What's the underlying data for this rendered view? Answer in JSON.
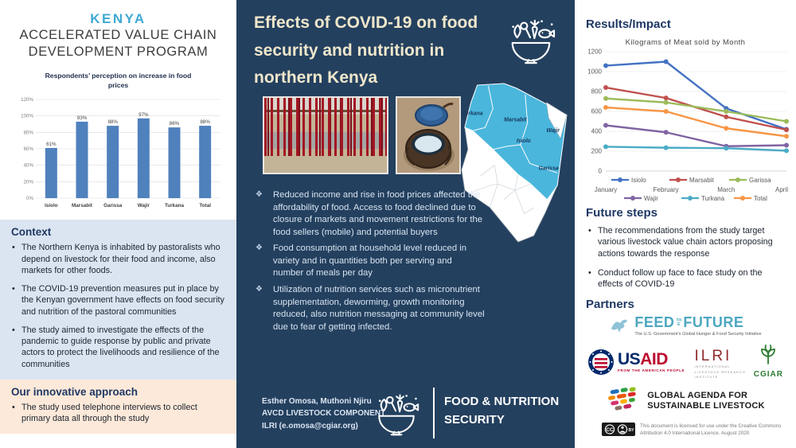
{
  "left_column": {
    "program_title": {
      "line1": "KENYA",
      "line2": "ACCELERATED VALUE CHAIN",
      "line3": "DEVELOPMENT PROGRAM"
    },
    "context": {
      "heading": "Context",
      "bullets": [
        "The Northern Kenya is inhabited by pastoralists who depend on livestock for their food and income, also markets for other foods.",
        "The COVID-19 prevention measures put in place by the Kenyan government have effects on food security and nutrition of the pastoral communities",
        "The study aimed to investigate the effects of the pandemic to guide response by public and private actors to protect the livelihoods and resilience of the communities"
      ]
    },
    "approach": {
      "heading": "Our innovative approach",
      "bullets": [
        "The study used telephone interviews to collect primary data all through the study"
      ]
    }
  },
  "center_column": {
    "title": "Effects of COVID-19 on food security and nutrition in northern Kenya",
    "map_counties": [
      "Turkana",
      "Marsabit",
      "Wajir",
      "Isiolo",
      "Garissa"
    ],
    "bullets": [
      "Reduced income and rise in food prices affected the affordability of food. Access to food declined due to closure of markets and movement restrictions for the food sellers (mobile) and potential buyers",
      "Food consumption at household level reduced in variety and in quantities both per serving and number of meals per day",
      "Utilization of nutrition services such as micronutrient supplementation, deworming, growth monitoring reduced, also nutrition messaging at community level due to fear of getting infected."
    ],
    "footer": {
      "authors": "Esther Omosa, Muthoni Njiru",
      "component": "AVCD LIVESTOCK COMPONENT",
      "contact": "ILRI (e.omosa@cgiar.org)",
      "program": "FOOD & NUTRITION SECURITY"
    }
  },
  "right_column": {
    "results_heading": "Results/Impact",
    "future_steps": {
      "heading": "Future steps",
      "bullets": [
        "The recommendations from the study target various livestock value chain actors proposing actions towards the response",
        "Conduct follow up face to face study on the effects of COVID-19"
      ]
    },
    "partners": {
      "heading": "Partners",
      "feed_the_future": {
        "word1": "FEED",
        "word2": "THE",
        "word3": "FUTURE",
        "tagline": "The U.S. Government's Global Hunger & Food Security Initiative"
      },
      "usaid": {
        "word1": "US",
        "word2": "AID",
        "tagline": "FROM THE AMERICAN PEOPLE"
      },
      "ilri": {
        "name": "ILRI",
        "sub1": "INTERNATIONAL",
        "sub2": "LIVESTOCK RESEARCH",
        "sub3": "INSTITUTE"
      },
      "cgiar": {
        "name": "CGIAR"
      },
      "gasl": {
        "line1": "GLOBAL AGENDA FOR",
        "line2": "SUSTAINABLE LIVESTOCK"
      }
    },
    "license": {
      "badge": "CC BY",
      "text": "This document is licensed for use under the Creative Commons Attribution 4.0 International Licence. August 2020"
    }
  },
  "chart_data": [
    {
      "type": "bar",
      "title": "Respondents’ perception on increase in  food prices",
      "categories": [
        "Isiolo",
        "Marsabit",
        "Garissa",
        "Wajir",
        "Turkana",
        "Total"
      ],
      "values": [
        61,
        93,
        88,
        97,
        86,
        88
      ],
      "ylim": [
        0,
        120
      ],
      "yticks": [
        0,
        20,
        40,
        60,
        80,
        100,
        120
      ],
      "bar_color": "#4f81bd",
      "xlabel": "",
      "ylabel": "",
      "grid": true,
      "legend_position": "none"
    },
    {
      "type": "line",
      "title": "Kilograms of Meat sold by Month",
      "x": [
        "January",
        "February",
        "March",
        "April"
      ],
      "series": [
        {
          "name": "Isiolo",
          "color": "#4472c4",
          "values": [
            1060,
            1100,
            630,
            420
          ]
        },
        {
          "name": "Marsabit",
          "color": "#c0504d",
          "values": [
            840,
            735,
            545,
            415
          ]
        },
        {
          "name": "Garissa",
          "color": "#9bbb59",
          "values": [
            730,
            690,
            600,
            500
          ]
        },
        {
          "name": "Wajir",
          "color": "#8064a2",
          "values": [
            460,
            390,
            250,
            260
          ]
        },
        {
          "name": "Turkana",
          "color": "#4bacc6",
          "values": [
            245,
            235,
            230,
            205
          ]
        },
        {
          "name": "Total",
          "color": "#f79646",
          "values": [
            640,
            600,
            430,
            350
          ]
        }
      ],
      "ylim": [
        0,
        1200
      ],
      "yticks": [
        0,
        200,
        400,
        600,
        800,
        1000,
        1200
      ],
      "grid": true,
      "legend_position": "bottom"
    }
  ],
  "colors": {
    "navy_panel": "#24405f",
    "accent_blue": "#3fa9d4",
    "heading_navy": "#1f3864",
    "context_bg": "#dbe5f1",
    "approach_bg": "#fde9d9",
    "map_highlight": "#4ab6dc",
    "title_cream": "#efe7cb"
  }
}
